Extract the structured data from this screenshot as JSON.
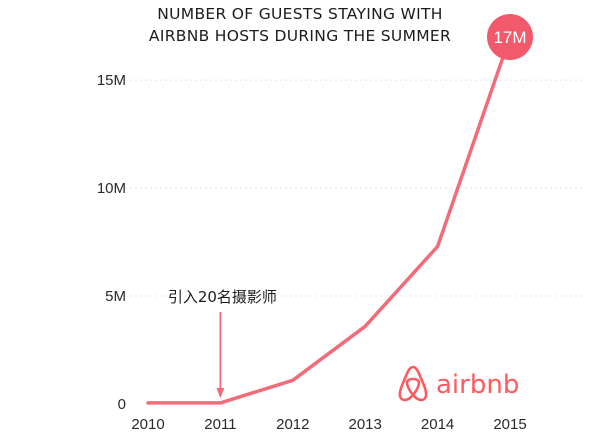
{
  "chart_data": {
    "type": "line",
    "title_lines": [
      "NUMBER OF GUESTS STAYING WITH",
      "AIRBNB HOSTS DURING THE SUMMER"
    ],
    "x": [
      "2010",
      "2011",
      "2012",
      "2013",
      "2014",
      "2015"
    ],
    "series": [
      {
        "values": [
          0.05,
          0.05,
          1.1,
          3.6,
          7.3,
          17
        ]
      }
    ],
    "y_ticks": [
      {
        "value": 0,
        "label": "0"
      },
      {
        "value": 5,
        "label": "5M"
      },
      {
        "value": 10,
        "label": "10M"
      },
      {
        "value": 15,
        "label": "15M"
      }
    ],
    "ylim": [
      0,
      17
    ],
    "grid": true,
    "end_label": "17M",
    "annotation": {
      "text": "引入20名摄影师",
      "x": "2011"
    },
    "logo": {
      "text": "airbnb"
    },
    "colors": {
      "line": "#f26b78",
      "bubble": "#f25a6b",
      "logo": "#ff5a5f"
    }
  }
}
